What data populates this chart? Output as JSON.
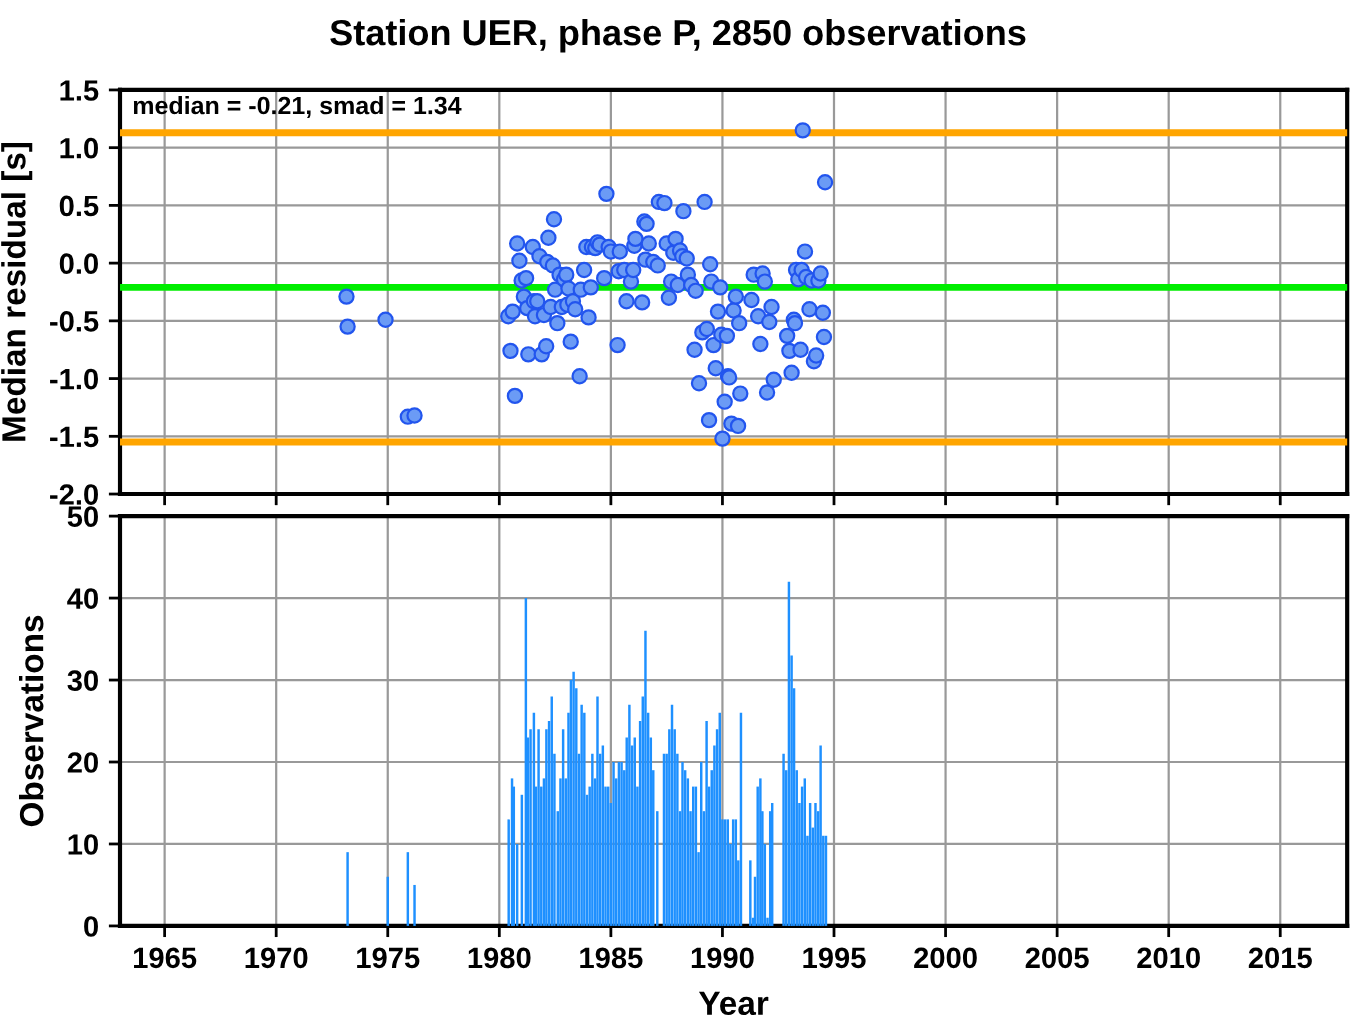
{
  "chart_data": [
    {
      "type": "scatter",
      "title": "Station UER, phase P, 2850 observations",
      "ylabel": "Median residual [s]",
      "annotations": [
        "median = -0.21, smad = 1.34"
      ],
      "series": [
        {
          "color": "#6b9bf5",
          "x": [
            1973.15,
            1973.2,
            1974.9,
            1975.9,
            1976.2,
            1980.4,
            1980.6,
            1980.5,
            1980.7,
            1980.8,
            1980.9,
            1981.0,
            1981.2,
            1981.1,
            1981.25,
            1981.3,
            1981.5,
            1981.55,
            1981.7,
            1981.6,
            1981.8,
            1981.9,
            1982.1,
            1982.0,
            1982.15,
            1982.2,
            1982.4,
            1982.45,
            1982.3,
            1982.5,
            1982.6,
            1982.7,
            1982.9,
            1983.0,
            1982.8,
            1983.05,
            1983.2,
            1983.1,
            1983.3,
            1983.4,
            1983.6,
            1983.65,
            1983.8,
            1983.9,
            1984.0,
            1984.1,
            1984.15,
            1984.3,
            1984.4,
            1984.5,
            1984.7,
            1984.8,
            1984.9,
            1985.0,
            1985.3,
            1985.35,
            1985.4,
            1985.6,
            1985.7,
            1985.9,
            1986.0,
            1986.05,
            1986.1,
            1986.4,
            1986.5,
            1986.6,
            1986.55,
            1986.7,
            1986.9,
            1987.1,
            1987.15,
            1987.4,
            1987.5,
            1987.6,
            1987.7,
            1987.8,
            1987.9,
            1988.0,
            1988.1,
            1988.2,
            1988.25,
            1988.4,
            1988.45,
            1988.6,
            1988.75,
            1988.8,
            1988.95,
            1989.1,
            1989.2,
            1989.3,
            1989.4,
            1989.45,
            1989.5,
            1989.6,
            1989.7,
            1989.8,
            1989.9,
            1989.95,
            1990.0,
            1990.1,
            1990.2,
            1990.25,
            1990.3,
            1990.4,
            1990.5,
            1990.6,
            1990.7,
            1990.75,
            1990.8,
            1991.3,
            1991.4,
            1991.6,
            1991.7,
            1991.8,
            1991.9,
            1992.0,
            1992.1,
            1992.2,
            1992.3,
            1992.9,
            1993.0,
            1993.1,
            1993.2,
            1993.25,
            1993.3,
            1993.4,
            1993.5,
            1993.55,
            1993.6,
            1993.7,
            1993.75,
            1993.9,
            1994.0,
            1994.1,
            1994.2,
            1994.3,
            1994.4,
            1994.5,
            1994.55,
            1994.6
          ],
          "values": [
            -0.29,
            -0.55,
            -0.49,
            -1.33,
            -1.32,
            -0.46,
            -0.42,
            -0.76,
            -1.15,
            0.17,
            0.02,
            -0.15,
            -0.13,
            -0.29,
            -0.39,
            -0.79,
            0.14,
            -0.33,
            -0.33,
            -0.46,
            0.06,
            -0.79,
            -0.72,
            -0.45,
            0.01,
            0.22,
            -0.02,
            0.38,
            -0.38,
            -0.23,
            -0.52,
            -0.1,
            -0.14,
            -0.1,
            -0.38,
            -0.36,
            -0.68,
            -0.22,
            -0.33,
            -0.4,
            -0.98,
            -0.23,
            -0.06,
            0.14,
            -0.47,
            -0.21,
            0.14,
            0.13,
            0.18,
            0.16,
            -0.13,
            0.6,
            0.14,
            0.1,
            -0.71,
            -0.07,
            0.1,
            -0.06,
            -0.33,
            -0.16,
            -0.06,
            0.15,
            0.21,
            -0.34,
            0.36,
            0.34,
            0.03,
            0.17,
            0.01,
            -0.02,
            0.53,
            0.52,
            0.17,
            -0.3,
            -0.16,
            0.09,
            0.21,
            -0.19,
            0.11,
            0.06,
            0.45,
            0.04,
            -0.1,
            -0.19,
            -0.75,
            -0.24,
            -1.04,
            -0.6,
            0.53,
            -0.57,
            -1.36,
            -0.01,
            -0.16,
            -0.71,
            -0.91,
            -0.42,
            -0.21,
            -0.62,
            -1.52,
            -1.2,
            -0.63,
            -0.98,
            -0.99,
            -1.39,
            -0.41,
            -0.29,
            -1.41,
            -0.52,
            -1.13,
            -0.32,
            -0.1,
            -0.46,
            -0.7,
            -0.09,
            -0.16,
            -1.12,
            -0.51,
            -0.38,
            -1.01,
            -0.63,
            -0.76,
            -0.95,
            -0.49,
            -0.52,
            -0.06,
            -0.14,
            -0.75,
            -0.06,
            1.15,
            0.1,
            -0.12,
            -0.4,
            -0.15,
            -0.85,
            -0.8,
            -0.15,
            -0.09,
            -0.43,
            -0.64,
            0.7
          ]
        }
      ],
      "marker": "circle",
      "ref_lines": [
        {
          "axis": "y",
          "value": 1.13,
          "color": "#ffa500"
        },
        {
          "axis": "y",
          "value": -1.55,
          "color": "#ffa500"
        },
        {
          "axis": "y",
          "value": -0.21,
          "color": "#00ee00"
        }
      ],
      "xlim": [
        1963,
        2018
      ],
      "xticks": [
        1965,
        1970,
        1975,
        1980,
        1985,
        1990,
        1995,
        2000,
        2005,
        2010,
        2015
      ],
      "ylim": [
        -2.0,
        1.5
      ],
      "yticks": [
        {
          "value": -2.0,
          "label": "-2.0"
        },
        {
          "value": -1.5,
          "label": "-1.5"
        },
        {
          "value": -1.0,
          "label": "-1.0"
        },
        {
          "value": -0.5,
          "label": "-0.5"
        },
        {
          "value": 0.0,
          "label": "0.0"
        },
        {
          "value": 0.5,
          "label": "0.5"
        },
        {
          "value": 1.0,
          "label": "1.0"
        },
        {
          "value": 1.5,
          "label": "1.5"
        }
      ],
      "tick_labels": "y",
      "grid": true
    },
    {
      "type": "bar",
      "xlabel": "Year",
      "ylabel": "Observations",
      "series": [
        {
          "color": "#1e90ff",
          "x": [
            1973.2,
            1975.0,
            1975.9,
            1976.2,
            1980.42,
            1980.57,
            1980.65,
            1980.8,
            1981.01,
            1981.19,
            1981.28,
            1981.4,
            1981.55,
            1981.64,
            1981.76,
            1981.88,
            1982.0,
            1982.11,
            1982.23,
            1982.35,
            1982.47,
            1982.62,
            1982.74,
            1982.86,
            1982.98,
            1983.1,
            1983.21,
            1983.33,
            1983.45,
            1983.57,
            1983.69,
            1983.81,
            1983.93,
            1984.05,
            1984.17,
            1984.29,
            1984.4,
            1984.52,
            1984.64,
            1984.76,
            1984.88,
            1985.0,
            1985.12,
            1985.24,
            1985.36,
            1985.48,
            1985.6,
            1985.71,
            1985.83,
            1985.95,
            1986.07,
            1986.19,
            1986.31,
            1986.43,
            1986.55,
            1986.67,
            1986.79,
            1986.9,
            1987.08,
            1987.38,
            1987.5,
            1987.62,
            1987.74,
            1987.86,
            1987.98,
            1988.1,
            1988.21,
            1988.33,
            1988.45,
            1988.57,
            1988.69,
            1988.81,
            1988.93,
            1989.05,
            1989.17,
            1989.29,
            1989.4,
            1989.52,
            1989.64,
            1989.76,
            1989.88,
            1990.0,
            1990.12,
            1990.24,
            1990.36,
            1990.48,
            1990.6,
            1990.71,
            1990.83,
            1991.25,
            1991.37,
            1991.46,
            1991.58,
            1991.7,
            1991.79,
            1991.9,
            1992.02,
            1992.14,
            1992.23,
            1992.74,
            1992.86,
            1992.98,
            1993.1,
            1993.21,
            1993.33,
            1993.45,
            1993.57,
            1993.69,
            1993.81,
            1993.93,
            1994.05,
            1994.17,
            1994.29,
            1994.4,
            1994.52,
            1994.64
          ],
          "values": [
            9,
            6,
            9,
            5,
            13,
            18,
            17,
            10,
            16,
            40,
            23,
            24,
            26,
            17,
            24,
            17,
            18,
            24,
            25,
            28,
            21,
            14,
            18,
            24,
            18,
            26,
            30,
            31,
            29,
            21,
            27,
            26,
            16,
            17,
            21,
            18,
            28,
            21,
            22,
            17,
            17,
            15,
            20,
            18,
            20,
            20,
            19,
            23,
            27,
            22,
            23,
            17,
            25,
            28,
            36,
            26,
            23,
            19,
            14,
            21,
            21,
            24,
            27,
            24,
            21,
            14,
            20,
            19,
            18,
            14,
            17,
            17,
            9,
            20,
            14,
            25,
            17,
            19,
            22,
            24,
            26,
            13,
            13,
            13,
            10,
            13,
            13,
            8,
            26,
            8,
            1,
            6,
            17,
            18,
            14,
            10,
            1,
            14,
            15,
            21,
            19,
            42,
            33,
            29,
            19,
            15,
            17,
            18,
            11,
            15,
            12,
            15,
            14,
            22,
            11,
            11
          ]
        }
      ],
      "xlim": [
        1963,
        2018
      ],
      "xticks": [
        1965,
        1970,
        1975,
        1980,
        1985,
        1990,
        1995,
        2000,
        2005,
        2010,
        2015
      ],
      "ylim": [
        0,
        50
      ],
      "yticks": [
        0,
        10,
        20,
        30,
        40,
        50
      ],
      "grid": true
    }
  ]
}
